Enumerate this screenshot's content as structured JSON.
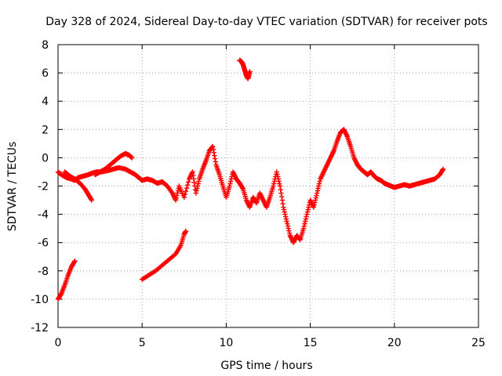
{
  "chart_data": {
    "type": "scatter",
    "title": "Day 328 of 2024, Sidereal Day-to-day VTEC variation (SDTVAR) for receiver pots",
    "xlabel": "GPS time / hours",
    "ylabel": "SDTVAR / TECUs",
    "xlim": [
      0,
      25
    ],
    "ylim": [
      -12,
      8
    ],
    "xticks": [
      0,
      5,
      10,
      15,
      20,
      25
    ],
    "yticks": [
      -12,
      -10,
      -8,
      -6,
      -4,
      -2,
      0,
      2,
      4,
      6,
      8
    ],
    "grid": true,
    "marker": "+",
    "color": "#ff0000",
    "series": [
      {
        "name": "sdtvar-main",
        "points": [
          [
            0.0,
            -1.0
          ],
          [
            0.2,
            -1.2
          ],
          [
            0.5,
            -1.4
          ],
          [
            0.8,
            -1.5
          ],
          [
            1.0,
            -1.6
          ],
          [
            1.2,
            -1.4
          ],
          [
            1.5,
            -1.3
          ],
          [
            1.8,
            -1.2
          ],
          [
            2.0,
            -1.1
          ],
          [
            2.3,
            -1.0
          ],
          [
            2.6,
            -1.0
          ],
          [
            3.0,
            -0.9
          ],
          [
            3.3,
            -0.8
          ],
          [
            3.6,
            -0.7
          ],
          [
            4.0,
            -0.8
          ],
          [
            4.3,
            -1.0
          ],
          [
            4.6,
            -1.2
          ],
          [
            4.8,
            -1.4
          ],
          [
            5.0,
            -1.6
          ],
          [
            5.3,
            -1.5
          ],
          [
            5.6,
            -1.6
          ],
          [
            5.9,
            -1.8
          ],
          [
            6.2,
            -1.7
          ],
          [
            6.5,
            -2.0
          ],
          [
            6.8,
            -2.5
          ],
          [
            7.0,
            -3.0
          ],
          [
            7.2,
            -2.0
          ],
          [
            7.5,
            -2.8
          ],
          [
            7.8,
            -1.5
          ],
          [
            8.0,
            -1.0
          ],
          [
            8.2,
            -2.5
          ],
          [
            8.4,
            -1.5
          ],
          [
            8.6,
            -0.8
          ],
          [
            8.8,
            -0.2
          ],
          [
            9.0,
            0.5
          ],
          [
            9.2,
            0.8
          ],
          [
            9.4,
            -0.5
          ],
          [
            9.6,
            -1.2
          ],
          [
            9.8,
            -2.0
          ],
          [
            10.0,
            -2.8
          ],
          [
            10.2,
            -2.0
          ],
          [
            10.4,
            -1.0
          ],
          [
            10.6,
            -1.5
          ],
          [
            10.8,
            -1.8
          ],
          [
            11.0,
            -2.2
          ],
          [
            11.2,
            -3.0
          ],
          [
            11.4,
            -3.5
          ],
          [
            11.6,
            -2.8
          ],
          [
            11.8,
            -3.2
          ],
          [
            12.0,
            -2.5
          ],
          [
            12.2,
            -3.0
          ],
          [
            12.4,
            -3.5
          ],
          [
            12.6,
            -2.8
          ],
          [
            12.8,
            -2.0
          ],
          [
            13.0,
            -1.0
          ],
          [
            13.2,
            -2.0
          ],
          [
            13.4,
            -3.5
          ],
          [
            13.6,
            -4.5
          ],
          [
            13.8,
            -5.5
          ],
          [
            14.0,
            -6.0
          ],
          [
            14.2,
            -5.5
          ],
          [
            14.4,
            -5.8
          ],
          [
            14.6,
            -5.0
          ],
          [
            14.8,
            -4.0
          ],
          [
            15.0,
            -3.0
          ],
          [
            15.2,
            -3.5
          ],
          [
            15.4,
            -2.5
          ],
          [
            15.6,
            -1.5
          ],
          [
            15.8,
            -1.0
          ],
          [
            16.0,
            -0.5
          ],
          [
            16.2,
            0.0
          ],
          [
            16.4,
            0.5
          ],
          [
            16.6,
            1.2
          ],
          [
            16.8,
            1.8
          ],
          [
            17.0,
            2.0
          ],
          [
            17.2,
            1.5
          ],
          [
            17.4,
            0.8
          ],
          [
            17.6,
            0.0
          ],
          [
            17.8,
            -0.5
          ],
          [
            18.0,
            -0.8
          ],
          [
            18.2,
            -1.0
          ],
          [
            18.4,
            -1.2
          ],
          [
            18.6,
            -1.0
          ],
          [
            18.8,
            -1.3
          ],
          [
            19.0,
            -1.5
          ],
          [
            19.2,
            -1.6
          ],
          [
            19.4,
            -1.8
          ],
          [
            19.6,
            -1.9
          ],
          [
            19.8,
            -2.0
          ],
          [
            20.0,
            -2.1
          ],
          [
            20.3,
            -2.0
          ],
          [
            20.6,
            -1.9
          ],
          [
            20.9,
            -2.0
          ],
          [
            21.2,
            -1.9
          ],
          [
            21.5,
            -1.8
          ],
          [
            21.8,
            -1.7
          ],
          [
            22.1,
            -1.6
          ],
          [
            22.4,
            -1.5
          ],
          [
            22.7,
            -1.2
          ],
          [
            22.9,
            -0.8
          ]
        ]
      },
      {
        "name": "sdtvar-early-high",
        "points": [
          [
            2.2,
            -1.2
          ],
          [
            2.5,
            -1.0
          ],
          [
            2.8,
            -0.8
          ],
          [
            3.1,
            -0.5
          ],
          [
            3.4,
            -0.2
          ],
          [
            3.7,
            0.1
          ],
          [
            4.0,
            0.3
          ],
          [
            4.2,
            0.2
          ],
          [
            4.4,
            0.0
          ]
        ]
      },
      {
        "name": "sdtvar-early-dip",
        "points": [
          [
            0.4,
            -1.0
          ],
          [
            0.7,
            -1.3
          ],
          [
            1.0,
            -1.5
          ],
          [
            1.3,
            -1.8
          ],
          [
            1.6,
            -2.2
          ],
          [
            1.8,
            -2.6
          ],
          [
            2.0,
            -3.0
          ]
        ]
      },
      {
        "name": "sdtvar-low-arc-1",
        "points": [
          [
            0.0,
            -10.0
          ],
          [
            0.2,
            -9.6
          ],
          [
            0.4,
            -9.0
          ],
          [
            0.6,
            -8.3
          ],
          [
            0.8,
            -7.7
          ],
          [
            1.0,
            -7.3
          ]
        ]
      },
      {
        "name": "sdtvar-low-arc-2",
        "points": [
          [
            5.0,
            -8.6
          ],
          [
            5.4,
            -8.3
          ],
          [
            5.8,
            -8.0
          ],
          [
            6.2,
            -7.6
          ],
          [
            6.6,
            -7.2
          ],
          [
            7.0,
            -6.8
          ],
          [
            7.3,
            -6.2
          ],
          [
            7.5,
            -5.4
          ],
          [
            7.6,
            -5.2
          ]
        ]
      },
      {
        "name": "sdtvar-high-arc",
        "points": [
          [
            10.8,
            6.9
          ],
          [
            10.9,
            6.8
          ],
          [
            11.0,
            6.6
          ],
          [
            11.1,
            6.2
          ],
          [
            11.2,
            5.8
          ],
          [
            11.3,
            5.6
          ],
          [
            11.4,
            6.1
          ]
        ]
      }
    ]
  }
}
